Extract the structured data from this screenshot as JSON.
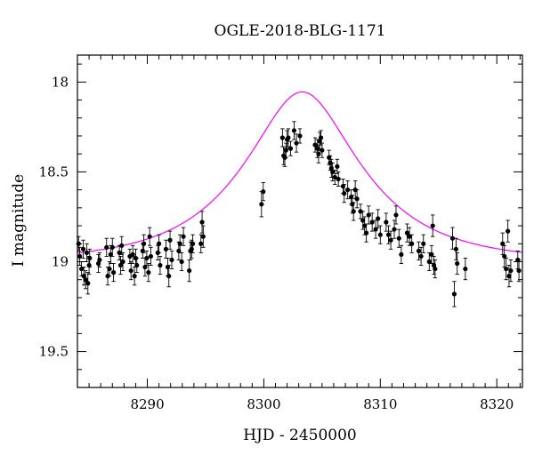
{
  "chart_data": {
    "type": "scatter",
    "title": "OGLE-2018-BLG-1171",
    "xlabel": "HJD - 2450000",
    "ylabel": "I magnitude",
    "xlim": [
      8284,
      8322.2
    ],
    "ylim": [
      19.7,
      17.85
    ],
    "y_inverted": true,
    "grid": false,
    "x_major_ticks": [
      8290,
      8300,
      8310,
      8320
    ],
    "x_tick_labels": [
      "8290",
      "8300",
      "8310",
      "8320"
    ],
    "y_major_ticks": [
      18,
      18.5,
      19,
      19.5
    ],
    "y_tick_labels": [
      "18",
      "18.5",
      "19",
      "19.5"
    ],
    "x_minor_step": 1,
    "y_minor_step": 0.1,
    "colors": {
      "points": "#000000",
      "model": "#ff00ff",
      "axes": "#000000"
    },
    "model": {
      "name": "",
      "t0": 8303.3,
      "u0": 0.45,
      "tE": 9.0,
      "baseline_mag": 19.0
    },
    "series": [
      {
        "name": "",
        "points": [
          [
            8284.1,
            18.9,
            0.04
          ],
          [
            8284.2,
            18.97,
            0.05
          ],
          [
            8284.35,
            19.04,
            0.04
          ],
          [
            8284.5,
            18.93,
            0.05
          ],
          [
            8284.55,
            19.08,
            0.05
          ],
          [
            8284.7,
            19.1,
            0.05
          ],
          [
            8284.8,
            18.95,
            0.05
          ],
          [
            8284.9,
            19.12,
            0.06
          ],
          [
            8285.0,
            19.02,
            0.05
          ],
          [
            8285.05,
            18.98,
            0.05
          ],
          [
            8285.8,
            19.01,
            0.05
          ],
          [
            8285.9,
            18.99,
            0.04
          ],
          [
            8286.5,
            18.92,
            0.05
          ],
          [
            8286.6,
            19.08,
            0.05
          ],
          [
            8286.75,
            19.04,
            0.04
          ],
          [
            8286.85,
            18.96,
            0.05
          ],
          [
            8287.0,
            18.92,
            0.05
          ],
          [
            8287.1,
            19.06,
            0.05
          ],
          [
            8287.6,
            18.95,
            0.04
          ],
          [
            8287.7,
            19.02,
            0.05
          ],
          [
            8287.8,
            18.91,
            0.05
          ],
          [
            8287.9,
            19.0,
            0.05
          ],
          [
            8288.5,
            18.97,
            0.04
          ],
          [
            8288.6,
            19.05,
            0.05
          ],
          [
            8288.75,
            18.96,
            0.05
          ],
          [
            8288.9,
            19.08,
            0.05
          ],
          [
            8289.0,
            18.98,
            0.05
          ],
          [
            8289.1,
            19.02,
            0.04
          ],
          [
            8289.6,
            18.94,
            0.04
          ],
          [
            8289.7,
            18.9,
            0.05
          ],
          [
            8289.8,
            19.03,
            0.05
          ],
          [
            8289.95,
            18.98,
            0.04
          ],
          [
            8290.1,
            19.06,
            0.05
          ],
          [
            8290.2,
            18.86,
            0.05
          ],
          [
            8290.3,
            18.97,
            0.05
          ],
          [
            8290.9,
            18.95,
            0.04
          ],
          [
            8291.0,
            18.9,
            0.05
          ],
          [
            8291.1,
            19.02,
            0.05
          ],
          [
            8291.6,
            18.93,
            0.05
          ],
          [
            8291.75,
            19.03,
            0.05
          ],
          [
            8291.85,
            19.08,
            0.06
          ],
          [
            8291.95,
            18.88,
            0.05
          ],
          [
            8292.1,
            18.99,
            0.05
          ],
          [
            8292.7,
            18.94,
            0.05
          ],
          [
            8292.8,
            18.9,
            0.05
          ],
          [
            8292.95,
            19.0,
            0.05
          ],
          [
            8293.1,
            18.86,
            0.05
          ],
          [
            8293.6,
            19.05,
            0.06
          ],
          [
            8293.7,
            18.94,
            0.05
          ],
          [
            8293.8,
            18.93,
            0.05
          ],
          [
            8293.9,
            18.9,
            0.05
          ],
          [
            8294.6,
            18.9,
            0.05
          ],
          [
            8294.7,
            18.78,
            0.06
          ],
          [
            8294.8,
            18.86,
            0.06
          ],
          [
            8299.8,
            18.68,
            0.07
          ],
          [
            8299.95,
            18.61,
            0.05
          ],
          [
            8301.6,
            18.31,
            0.05
          ],
          [
            8301.7,
            18.41,
            0.05
          ],
          [
            8301.8,
            18.42,
            0.05
          ],
          [
            8301.9,
            18.38,
            0.04
          ],
          [
            8302.0,
            18.32,
            0.05
          ],
          [
            8302.1,
            18.31,
            0.05
          ],
          [
            8302.3,
            18.37,
            0.04
          ],
          [
            8302.6,
            18.27,
            0.05
          ],
          [
            8302.8,
            18.34,
            0.05
          ],
          [
            8303.1,
            18.3,
            0.04
          ],
          [
            8304.4,
            18.35,
            0.04
          ],
          [
            8304.6,
            18.37,
            0.05
          ],
          [
            8304.7,
            18.4,
            0.05
          ],
          [
            8304.8,
            18.33,
            0.05
          ],
          [
            8304.9,
            18.31,
            0.04
          ],
          [
            8305.0,
            18.38,
            0.04
          ],
          [
            8305.6,
            18.42,
            0.04
          ],
          [
            8305.7,
            18.45,
            0.04
          ],
          [
            8305.8,
            18.48,
            0.05
          ],
          [
            8305.9,
            18.5,
            0.05
          ],
          [
            8306.1,
            18.53,
            0.04
          ],
          [
            8306.3,
            18.47,
            0.04
          ],
          [
            8306.4,
            18.54,
            0.04
          ],
          [
            8306.8,
            18.58,
            0.04
          ],
          [
            8306.9,
            18.62,
            0.05
          ],
          [
            8307.2,
            18.6,
            0.05
          ],
          [
            8307.5,
            18.64,
            0.04
          ],
          [
            8307.6,
            18.68,
            0.05
          ],
          [
            8307.7,
            18.72,
            0.05
          ],
          [
            8307.85,
            18.6,
            0.05
          ],
          [
            8308.0,
            18.65,
            0.05
          ],
          [
            8308.3,
            18.72,
            0.04
          ],
          [
            8308.5,
            18.77,
            0.05
          ],
          [
            8308.65,
            18.8,
            0.05
          ],
          [
            8308.8,
            18.84,
            0.05
          ],
          [
            8309.0,
            18.74,
            0.05
          ],
          [
            8309.3,
            18.78,
            0.05
          ],
          [
            8309.6,
            18.82,
            0.05
          ],
          [
            8309.8,
            18.76,
            0.05
          ],
          [
            8310.0,
            18.85,
            0.05
          ],
          [
            8310.5,
            18.78,
            0.05
          ],
          [
            8310.7,
            18.85,
            0.05
          ],
          [
            8310.9,
            18.88,
            0.05
          ],
          [
            8311.2,
            18.82,
            0.05
          ],
          [
            8311.35,
            18.74,
            0.05
          ],
          [
            8311.6,
            18.87,
            0.05
          ],
          [
            8311.8,
            18.96,
            0.05
          ],
          [
            8312.3,
            18.84,
            0.05
          ],
          [
            8312.5,
            18.86,
            0.05
          ],
          [
            8312.7,
            18.9,
            0.05
          ],
          [
            8313.3,
            18.94,
            0.05
          ],
          [
            8313.5,
            18.97,
            0.05
          ],
          [
            8313.7,
            18.9,
            0.05
          ],
          [
            8314.2,
            19.0,
            0.05
          ],
          [
            8314.4,
            18.96,
            0.05
          ],
          [
            8314.5,
            18.8,
            0.06
          ],
          [
            8314.6,
            19.02,
            0.05
          ],
          [
            8314.7,
            19.04,
            0.05
          ],
          [
            8316.2,
            18.87,
            0.06
          ],
          [
            8316.35,
            19.18,
            0.07
          ],
          [
            8316.5,
            18.93,
            0.06
          ],
          [
            8316.6,
            19.01,
            0.06
          ],
          [
            8317.3,
            19.04,
            0.06
          ],
          [
            8320.5,
            18.9,
            0.06
          ],
          [
            8320.65,
            18.97,
            0.06
          ],
          [
            8320.8,
            19.04,
            0.06
          ],
          [
            8320.95,
            18.83,
            0.06
          ],
          [
            8321.05,
            19.08,
            0.06
          ],
          [
            8321.2,
            19.05,
            0.06
          ],
          [
            8321.8,
            18.99,
            0.05
          ],
          [
            8321.9,
            19.05,
            0.06
          ]
        ]
      }
    ]
  }
}
